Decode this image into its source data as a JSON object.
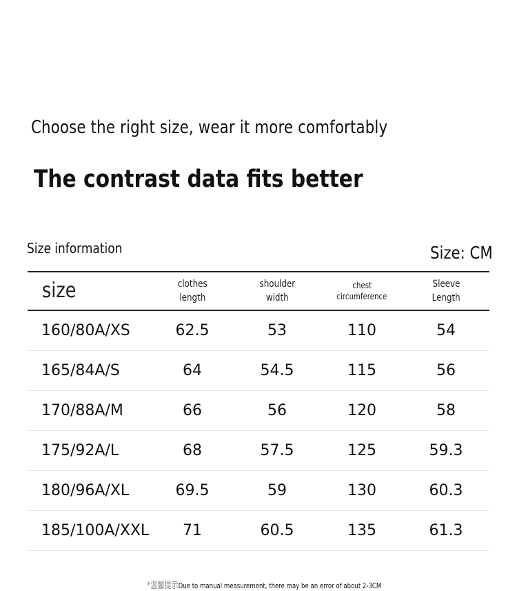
{
  "headline": "Choose the right size, wear it more comfortably",
  "subheadline": "The contrast data fits better",
  "size_info_label": "Size information",
  "size_unit_label": "Size: CM",
  "table": {
    "headers": {
      "size": "size",
      "clothes_length_1": "clothes",
      "clothes_length_2": "length",
      "shoulder_width_1": "shoulder",
      "shoulder_width_2": "width",
      "chest_1": "chest",
      "chest_2": "circumference",
      "sleeve_1": "Sleeve",
      "sleeve_2": "Length"
    },
    "rows": [
      [
        "160/80A/XS",
        "62.5",
        "53",
        "110",
        "54"
      ],
      [
        "165/84A/S",
        "64",
        "54.5",
        "115",
        "56"
      ],
      [
        "170/88A/M",
        "66",
        "56",
        "120",
        "58"
      ],
      [
        "175/92A/L",
        "68",
        "57.5",
        "125",
        "59.3"
      ],
      [
        "180/96A/XL",
        "69.5",
        "59",
        "130",
        "60.3"
      ],
      [
        "185/100A/XXL",
        "71",
        "60.5",
        "135",
        "61.3"
      ]
    ]
  },
  "footnote_cn": "*温馨提示",
  "footnote_text": "Due to manual measurement, there may be an error of about 2-3CM"
}
